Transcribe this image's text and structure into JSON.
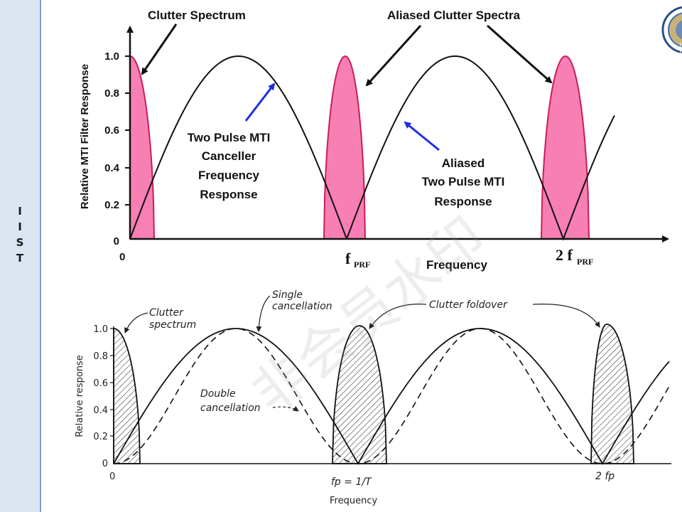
{
  "sidebar": {
    "letters": [
      "I",
      "I",
      "S",
      "T"
    ]
  },
  "top": {
    "ylabel": "Relative MTI Filter Response",
    "xlabel": "Frequency",
    "yticks": [
      "0",
      "0.2",
      "0.4",
      "0.6",
      "0.8",
      "1.0"
    ],
    "x0": "0",
    "x1": "f",
    "x1_sub": "PRF",
    "x2": "2 f",
    "x2_sub": "PRF",
    "ann_clutter": "Clutter Spectrum",
    "ann_aliased_clutter": "Aliased Clutter Spectra",
    "ann_canceller": [
      "Two Pulse MTI",
      "Canceller",
      "Frequency",
      "Response"
    ],
    "ann_aliased_mti": [
      "Aliased",
      "Two Pulse MTI",
      "Response"
    ],
    "colors": {
      "clutter_fill": "#f77fb4",
      "clutter_edge": "#c81e5a",
      "arrow_blue": "#1f2ee0"
    }
  },
  "bottom": {
    "ylabel": "Relative response",
    "xlabel": "Frequency",
    "yticks": [
      "0",
      "0.2",
      "0.4",
      "0.6",
      "0.8",
      "1.0"
    ],
    "x0": "0",
    "x1": "fp = 1/T",
    "x2": "2 fp",
    "ann_clutter": [
      "Clutter",
      "spectrum"
    ],
    "ann_single": [
      "Single",
      "cancellation"
    ],
    "ann_double": [
      "Double",
      "cancellation"
    ],
    "ann_foldover": "Clutter foldover"
  },
  "watermark": "非会员水印"
}
